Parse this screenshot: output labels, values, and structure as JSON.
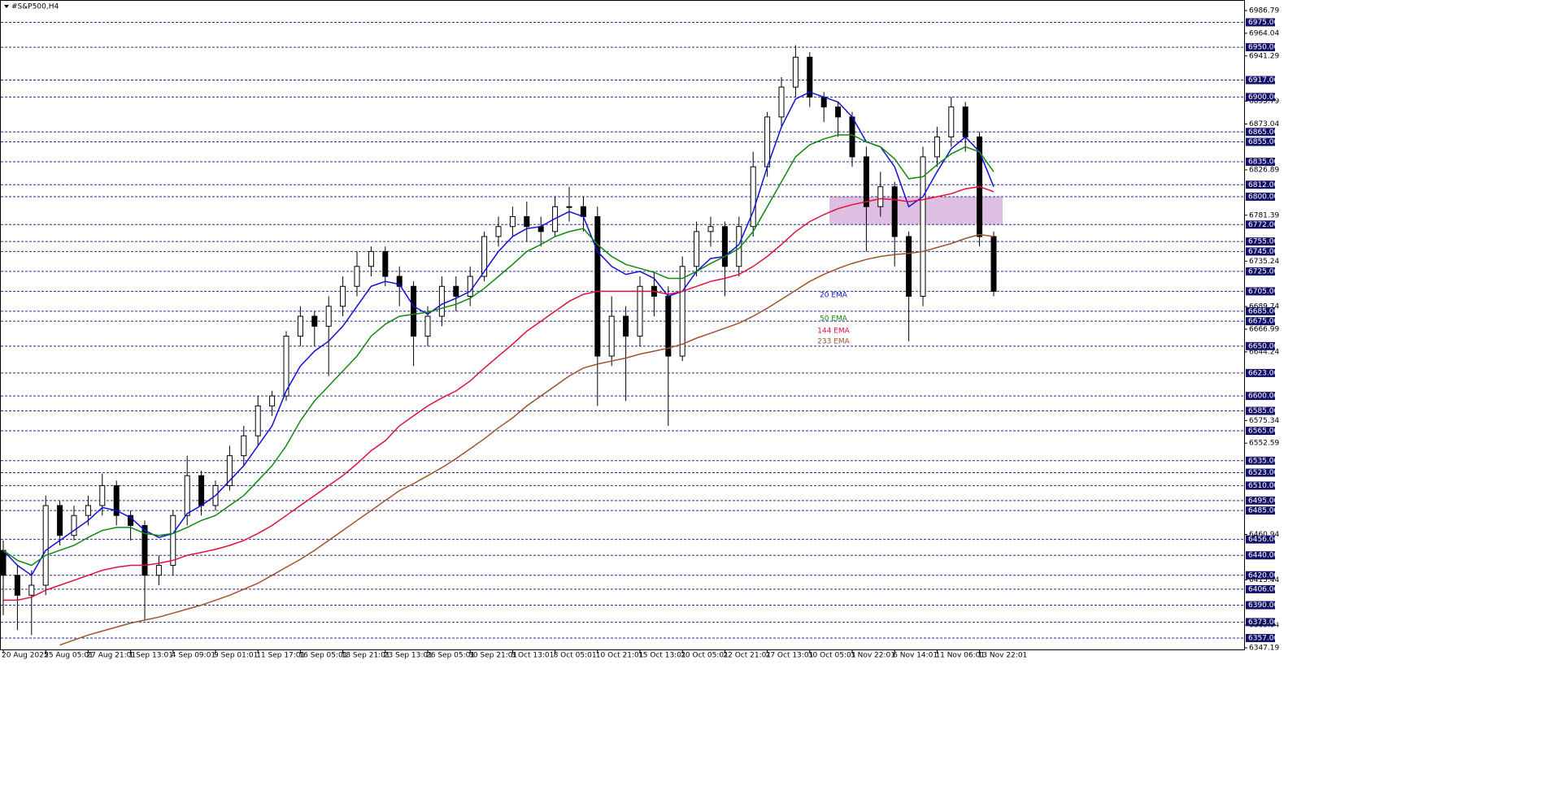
{
  "chart_data": {
    "type": "candlestick",
    "title": "#S&P500,H4",
    "ylim": [
      6347.19,
      6986.79
    ],
    "yticks": [
      6347.19,
      6369.94,
      6415.44,
      6460.94,
      6552.59,
      6575.34,
      6644.24,
      6666.99,
      6689.74,
      6735.24,
      6781.39,
      6826.89,
      6873.04,
      6895.79,
      6941.29,
      6964.04,
      6986.79
    ],
    "levels": [
      {
        "value": 6975,
        "label": "6975.00"
      },
      {
        "value": 6950,
        "label": "6950.00"
      },
      {
        "value": 6917,
        "label": "6917.00"
      },
      {
        "value": 6900,
        "label": "6900.00"
      },
      {
        "value": 6865,
        "label": "6865.00"
      },
      {
        "value": 6855,
        "label": "6855.00"
      },
      {
        "value": 6835,
        "label": "6835.00"
      },
      {
        "value": 6812,
        "label": "6812.00"
      },
      {
        "value": 6800,
        "label": "6800.00"
      },
      {
        "value": 6772,
        "label": "6772.00"
      },
      {
        "value": 6755,
        "label": "6755.00"
      },
      {
        "value": 6745,
        "label": "6745.00"
      },
      {
        "value": 6725,
        "label": "6725.00"
      },
      {
        "value": 6705,
        "label": "6705.00"
      },
      {
        "value": 6685,
        "label": "6685.00"
      },
      {
        "value": 6675,
        "label": "6675.00"
      },
      {
        "value": 6650,
        "label": "6650.00"
      },
      {
        "value": 6623,
        "label": "6623.00"
      },
      {
        "value": 6600,
        "label": "6600.00"
      },
      {
        "value": 6585,
        "label": "6585.00"
      },
      {
        "value": 6565,
        "label": "6565.00"
      },
      {
        "value": 6535,
        "label": "6535.00"
      },
      {
        "value": 6523,
        "label": "6523.00"
      },
      {
        "value": 6510,
        "label": "6510.00"
      },
      {
        "value": 6495,
        "label": "6495.00"
      },
      {
        "value": 6485,
        "label": "6485.00"
      },
      {
        "value": 6456,
        "label": "6456.00"
      },
      {
        "value": 6440,
        "label": "6440.00"
      },
      {
        "value": 6420,
        "label": "6420.00"
      },
      {
        "value": 6406,
        "label": "6406.00"
      },
      {
        "value": 6390,
        "label": "6390.00"
      },
      {
        "value": 6373,
        "label": "6373.00"
      },
      {
        "value": 6357,
        "label": "6357.00"
      }
    ],
    "level_color": "#2a2a9a",
    "zone": {
      "from": 6772,
      "to": 6800,
      "color": "#d8b4dc"
    },
    "categories": [
      "20 Aug 2025",
      null,
      null,
      "25 Aug 05:01",
      null,
      null,
      "27 Aug 21:01",
      null,
      null,
      "1 Sep 13:01",
      null,
      null,
      "4 Sep 09:01",
      null,
      null,
      "9 Sep 01:01",
      null,
      null,
      "11 Sep 17:01",
      null,
      null,
      "16 Sep 05:01",
      null,
      null,
      "18 Sep 21:01",
      null,
      null,
      "23 Sep 13:01",
      null,
      null,
      "26 Sep 05:01",
      null,
      null,
      "30 Sep 21:01",
      null,
      null,
      "3 Oct 13:01",
      null,
      null,
      "8 Oct 05:01",
      null,
      null,
      "10 Oct 21:01",
      null,
      null,
      "15 Oct 13:01",
      null,
      null,
      "20 Oct 05:01",
      null,
      null,
      "22 Oct 21:01",
      null,
      null,
      "27 Oct 13:01",
      null,
      null,
      "30 Oct 05:01",
      null,
      null,
      "3 Nov 22:01",
      null,
      null,
      "6 Nov 14:01",
      null,
      null,
      "11 Nov 06:01",
      null,
      null,
      "13 Nov 22:01",
      null
    ],
    "open": [
      6445,
      6420,
      6400,
      6410,
      6490,
      6460,
      6480,
      6490,
      6510,
      6480,
      6470,
      6420,
      6430,
      6480,
      6520,
      6490,
      6510,
      6540,
      6560,
      6590,
      6600,
      6660,
      6680,
      6670,
      6690,
      6710,
      6730,
      6745,
      6720,
      6710,
      6660,
      6680,
      6710,
      6700,
      6720,
      6760,
      6770,
      6780,
      6770,
      6765,
      6790,
      6790,
      6780,
      6640,
      6680,
      6660,
      6710,
      6700,
      6640,
      6730,
      6765,
      6770,
      6730,
      6770,
      6830,
      6880,
      6910,
      6940,
      6900,
      6890,
      6880,
      6840,
      6790,
      6810,
      6760,
      6700,
      6840,
      6860,
      6890,
      6860,
      6760
    ],
    "high": [
      6455,
      6430,
      6425,
      6500,
      6495,
      6490,
      6500,
      6522,
      6515,
      6485,
      6475,
      6440,
      6485,
      6540,
      6525,
      6515,
      6550,
      6570,
      6600,
      6605,
      6665,
      6690,
      6685,
      6700,
      6720,
      6745,
      6750,
      6750,
      6730,
      6715,
      6690,
      6720,
      6720,
      6730,
      6765,
      6780,
      6790,
      6795,
      6780,
      6800,
      6810,
      6800,
      6790,
      6700,
      6690,
      6720,
      6725,
      6710,
      6740,
      6775,
      6780,
      6775,
      6780,
      6845,
      6885,
      6920,
      6952,
      6945,
      6905,
      6895,
      6885,
      6850,
      6825,
      6815,
      6765,
      6850,
      6870,
      6900,
      6895,
      6865,
      6765
    ],
    "low": [
      6380,
      6365,
      6360,
      6400,
      6450,
      6455,
      6470,
      6480,
      6470,
      6455,
      6375,
      6410,
      6420,
      6470,
      6480,
      6485,
      6505,
      6530,
      6550,
      6580,
      6595,
      6650,
      6650,
      6620,
      6680,
      6700,
      6720,
      6710,
      6690,
      6630,
      6650,
      6670,
      6685,
      6690,
      6715,
      6750,
      6760,
      6755,
      6750,
      6760,
      6775,
      6765,
      6590,
      6630,
      6595,
      6650,
      6680,
      6570,
      6635,
      6720,
      6750,
      6700,
      6720,
      6760,
      6820,
      6870,
      6900,
      6890,
      6875,
      6860,
      6830,
      6745,
      6780,
      6730,
      6655,
      6690,
      6830,
      6850,
      6845,
      6750,
      6700
    ],
    "close": [
      6420,
      6400,
      6410,
      6490,
      6460,
      6480,
      6490,
      6510,
      6480,
      6470,
      6420,
      6430,
      6480,
      6520,
      6490,
      6510,
      6540,
      6560,
      6590,
      6600,
      6660,
      6680,
      6670,
      6690,
      6710,
      6730,
      6745,
      6720,
      6710,
      6660,
      6680,
      6710,
      6700,
      6720,
      6760,
      6770,
      6780,
      6770,
      6765,
      6790,
      6790,
      6780,
      6640,
      6680,
      6660,
      6710,
      6700,
      6640,
      6730,
      6765,
      6770,
      6730,
      6770,
      6830,
      6880,
      6910,
      6940,
      6900,
      6890,
      6880,
      6840,
      6790,
      6810,
      6760,
      6700,
      6840,
      6860,
      6890,
      6860,
      6760,
      6705
    ],
    "series": [
      {
        "name": "20 EMA",
        "color": "#1010d8",
        "values": [
          6445,
          6430,
          6420,
          6445,
          6455,
          6465,
          6475,
          6488,
          6485,
          6478,
          6465,
          6458,
          6462,
          6482,
          6490,
          6500,
          6515,
          6530,
          6550,
          6570,
          6605,
          6630,
          6645,
          6655,
          6670,
          6690,
          6710,
          6715,
          6712,
          6690,
          6682,
          6692,
          6698,
          6705,
          6725,
          6745,
          6760,
          6768,
          6770,
          6778,
          6785,
          6780,
          6745,
          6730,
          6722,
          6725,
          6718,
          6700,
          6705,
          6725,
          6738,
          6740,
          6752,
          6785,
          6830,
          6870,
          6898,
          6905,
          6900,
          6895,
          6880,
          6855,
          6850,
          6830,
          6790,
          6800,
          6825,
          6848,
          6860,
          6845,
          6810
        ]
      },
      {
        "name": "50 EMA",
        "color": "#118811",
        "values": [
          6445,
          6435,
          6430,
          6440,
          6445,
          6450,
          6458,
          6465,
          6468,
          6468,
          6462,
          6460,
          6462,
          6468,
          6475,
          6480,
          6490,
          6500,
          6515,
          6530,
          6550,
          6575,
          6595,
          6610,
          6625,
          6640,
          6660,
          6672,
          6680,
          6682,
          6684,
          6688,
          6692,
          6698,
          6708,
          6720,
          6732,
          6745,
          6752,
          6760,
          6765,
          6768,
          6752,
          6740,
          6732,
          6728,
          6724,
          6718,
          6718,
          6725,
          6733,
          6740,
          6748,
          6765,
          6790,
          6815,
          6840,
          6852,
          6858,
          6862,
          6862,
          6855,
          6850,
          6838,
          6818,
          6820,
          6832,
          6843,
          6850,
          6845,
          6825
        ]
      },
      {
        "name": "144 EMA",
        "color": "#e0103a",
        "values": [
          6395,
          6395,
          6398,
          6405,
          6410,
          6415,
          6420,
          6425,
          6428,
          6430,
          6430,
          6432,
          6435,
          6440,
          6443,
          6446,
          6450,
          6455,
          6462,
          6470,
          6480,
          6490,
          6500,
          6510,
          6520,
          6532,
          6545,
          6555,
          6570,
          6580,
          6590,
          6598,
          6605,
          6615,
          6628,
          6640,
          6652,
          6665,
          6675,
          6685,
          6695,
          6702,
          6705,
          6705,
          6705,
          6705,
          6705,
          6702,
          6705,
          6710,
          6715,
          6718,
          6722,
          6730,
          6740,
          6752,
          6765,
          6775,
          6782,
          6788,
          6792,
          6795,
          6798,
          6797,
          6795,
          6797,
          6800,
          6803,
          6808,
          6810,
          6805
        ]
      },
      {
        "name": "233 EMA",
        "color": "#a0522d",
        "values": [
          null,
          null,
          null,
          null,
          6350,
          6355,
          6360,
          6364,
          6368,
          6372,
          6375,
          6378,
          6382,
          6386,
          6390,
          6395,
          6400,
          6406,
          6412,
          6420,
          6428,
          6436,
          6445,
          6455,
          6465,
          6475,
          6485,
          6495,
          6505,
          6512,
          6520,
          6528,
          6537,
          6547,
          6557,
          6568,
          6578,
          6590,
          6600,
          6610,
          6620,
          6628,
          6632,
          6635,
          6638,
          6642,
          6645,
          6648,
          6652,
          6658,
          6663,
          6668,
          6673,
          6680,
          6688,
          6697,
          6706,
          6715,
          6722,
          6728,
          6733,
          6737,
          6740,
          6742,
          6743,
          6745,
          6749,
          6753,
          6758,
          6762,
          6760
        ]
      }
    ]
  }
}
